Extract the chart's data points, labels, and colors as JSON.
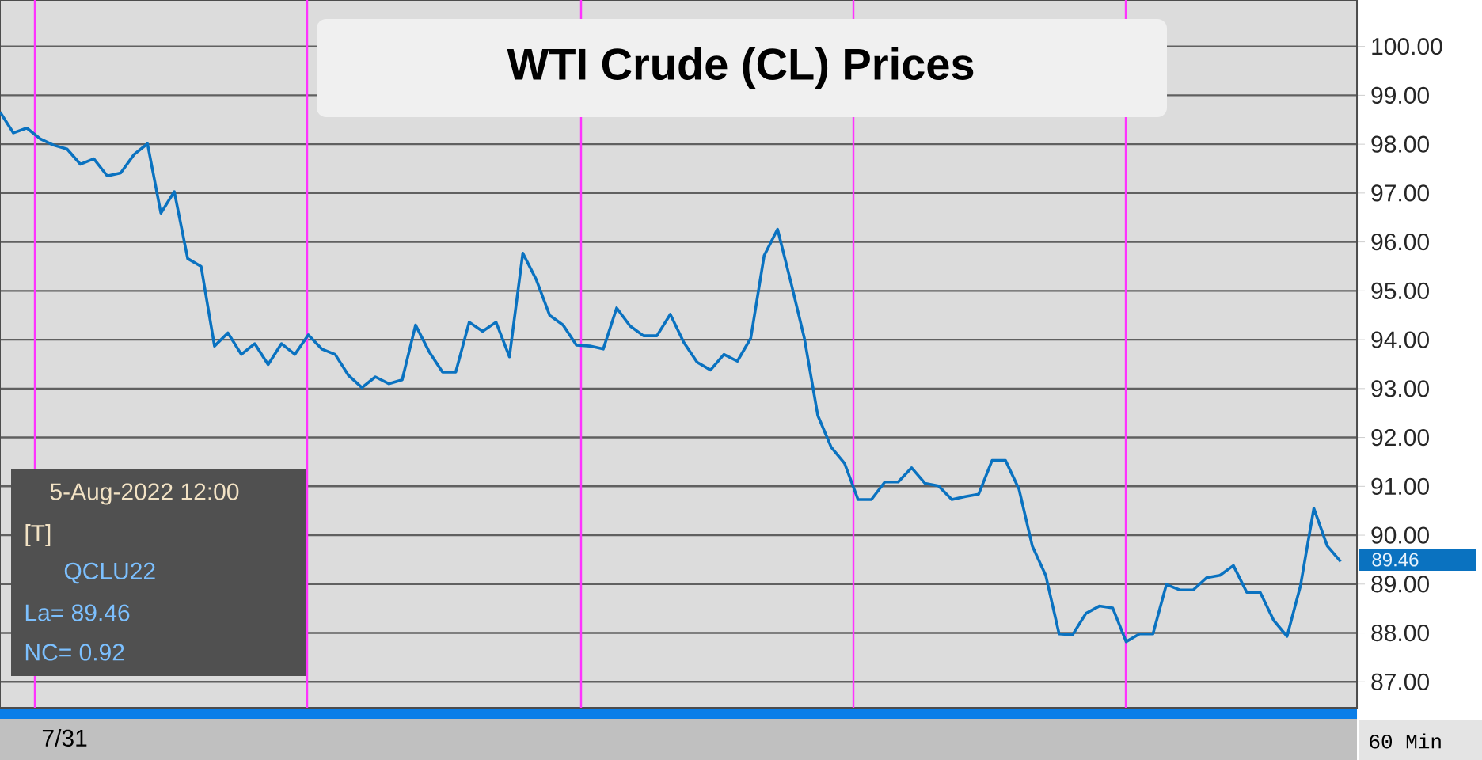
{
  "chart_data": {
    "type": "line",
    "title": "WTI Crude (CL) Prices",
    "categories": [
      null,
      null,
      null,
      null,
      null,
      null,
      null,
      null,
      null,
      null,
      null,
      null,
      null,
      null,
      null,
      null,
      null,
      null,
      null,
      null,
      null,
      null,
      null,
      null,
      null,
      null,
      null,
      null,
      null,
      null,
      null,
      null,
      null,
      null,
      null,
      null,
      null,
      null,
      null,
      null,
      null,
      null,
      null,
      null,
      null,
      null,
      null,
      null,
      null,
      null,
      null,
      null,
      null,
      null,
      null,
      null,
      null,
      null,
      null,
      null,
      null,
      null,
      null,
      null,
      null,
      null,
      null,
      null,
      null,
      null,
      null,
      null,
      null,
      null,
      null,
      null,
      null,
      null,
      null,
      null,
      null,
      null,
      null,
      null,
      null,
      null,
      null,
      null,
      null,
      null,
      null,
      null,
      null,
      null,
      null,
      null,
      null,
      null,
      null,
      null,
      null
    ],
    "series": [
      {
        "color": "#0a72c0",
        "values": [
          98.66,
          98.23,
          98.33,
          98.11,
          97.98,
          97.9,
          97.59,
          97.7,
          97.35,
          97.41,
          97.79,
          98.01,
          96.59,
          97.03,
          95.66,
          95.5,
          93.87,
          94.14,
          93.7,
          93.92,
          93.49,
          93.92,
          93.7,
          94.1,
          93.81,
          93.7,
          93.27,
          93.02,
          93.24,
          93.1,
          93.18,
          94.3,
          93.76,
          93.34,
          93.34,
          94.36,
          94.17,
          94.36,
          93.65,
          95.77,
          95.23,
          94.5,
          94.3,
          93.89,
          93.87,
          93.81,
          94.65,
          94.28,
          94.08,
          94.08,
          94.52,
          93.95,
          93.54,
          93.38,
          93.7,
          93.56,
          94.03,
          95.72,
          96.26,
          95.17,
          94.03,
          92.45,
          91.8,
          91.47,
          90.73,
          90.73,
          91.09,
          91.09,
          91.38,
          91.06,
          91.01,
          90.73,
          90.79,
          90.84,
          91.53,
          91.53,
          90.95,
          89.78,
          89.18,
          87.98,
          87.96,
          88.4,
          88.55,
          88.51,
          87.82,
          87.98,
          87.98,
          88.99,
          88.88,
          88.88,
          89.13,
          89.18,
          89.38,
          88.83,
          88.83,
          88.26,
          87.93,
          88.96,
          90.55,
          89.78,
          89.46
        ]
      }
    ],
    "ylim": [
      86.47,
      100.95
    ],
    "yticks": [
      {
        "value": 87,
        "label": "87.00"
      },
      {
        "value": 88,
        "label": "88.00"
      },
      {
        "value": 89,
        "label": "89.00"
      },
      {
        "value": 90,
        "label": "90.00"
      },
      {
        "value": 91,
        "label": "91.00"
      },
      {
        "value": 92,
        "label": "92.00"
      },
      {
        "value": 93,
        "label": "93.00"
      },
      {
        "value": 94,
        "label": "94.00"
      },
      {
        "value": 95,
        "label": "95.00"
      },
      {
        "value": 96,
        "label": "96.00"
      },
      {
        "value": 97,
        "label": "97.00"
      },
      {
        "value": 98,
        "label": "98.00"
      },
      {
        "value": 99,
        "label": "99.00"
      },
      {
        "value": 100,
        "label": "100.00"
      }
    ],
    "grid": "y",
    "marker": "none",
    "line_style": "solid",
    "annotations": [
      "5-Aug-2022 12:00",
      "[T]",
      "QCLU22",
      "La= 89.46",
      "NC= 0.92",
      "89.46",
      "60 Min",
      "7/31"
    ]
  }
}
